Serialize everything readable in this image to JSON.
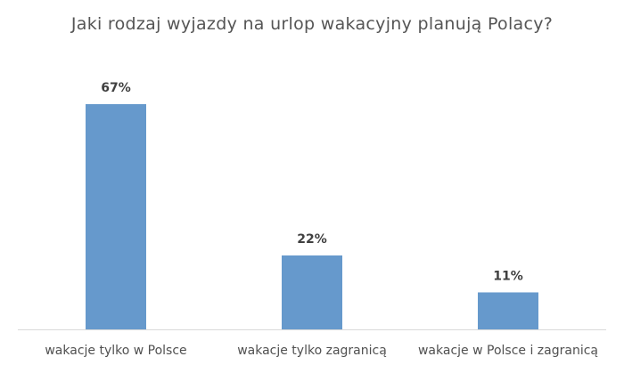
{
  "chart_data": {
    "type": "bar",
    "title": "Jaki rodzaj wyjazdy na urlop wakacyjny planują Polacy?",
    "categories": [
      "wakacje tylko w Polsce",
      "wakacje tylko zagranicą",
      "wakacje w Polsce i zagranicą"
    ],
    "values": [
      67,
      22,
      11
    ],
    "data_labels": [
      "67%",
      "22%",
      "11%"
    ],
    "ylim": [
      0,
      80
    ],
    "grid": false,
    "colors": {
      "bar": "#6699CC",
      "axis": "#D9D9D9"
    }
  }
}
